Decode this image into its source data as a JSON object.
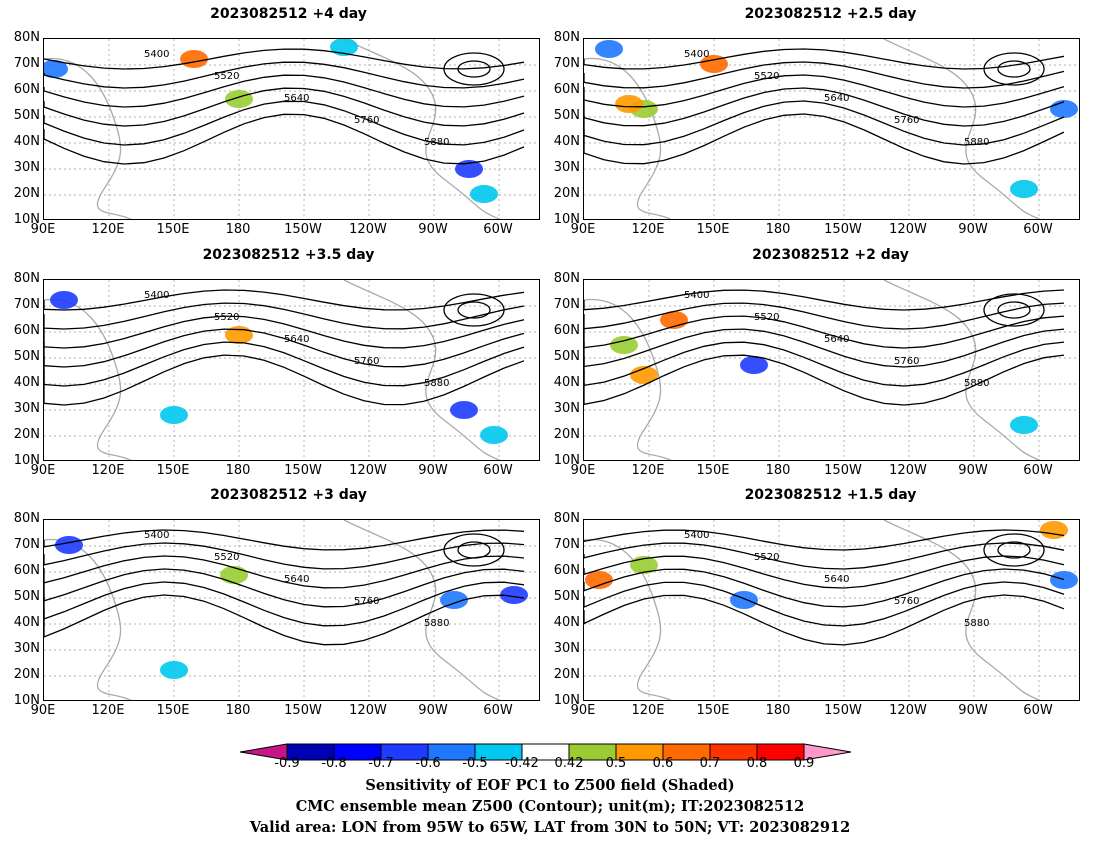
{
  "panels": [
    {
      "title": "2023082512  +4 day"
    },
    {
      "title": "2023082512  +2.5 day"
    },
    {
      "title": "2023082512  +3.5 day"
    },
    {
      "title": "2023082512  +2 day"
    },
    {
      "title": "2023082512  +3 day"
    },
    {
      "title": "2023082512  +1.5 day"
    }
  ],
  "lat_ticks": [
    "80N",
    "70N",
    "60N",
    "50N",
    "40N",
    "30N",
    "20N",
    "10N"
  ],
  "lon_ticks": [
    "90E",
    "120E",
    "150E",
    "180",
    "150W",
    "120W",
    "90W",
    "60W"
  ],
  "contour_labels": [
    "5400",
    "5520",
    "5640",
    "5760",
    "5880"
  ],
  "colorbar": {
    "ticks": [
      "-0.9",
      "-0.8",
      "-0.7",
      "-0.6",
      "-0.5",
      "-0.42",
      "0.42",
      "0.5",
      "0.6",
      "0.7",
      "0.8",
      "0.9"
    ],
    "colors": [
      "#c71585",
      "#0000b4",
      "#0000ff",
      "#1e3cff",
      "#1e78ff",
      "#00c8f0",
      "#ffffff",
      "#9acd32",
      "#ff9900",
      "#ff6a00",
      "#ff3300",
      "#ff0000",
      "#ff99cc"
    ]
  },
  "captions": [
    "Sensitivity of EOF PC1 to Z500 field (Shaded)",
    "CMC ensemble mean Z500 (Contour); unit(m); IT:2023082512",
    "Valid area: LON from 95W to 65W, LAT from 30N to 50N; VT: 2023082912"
  ]
}
